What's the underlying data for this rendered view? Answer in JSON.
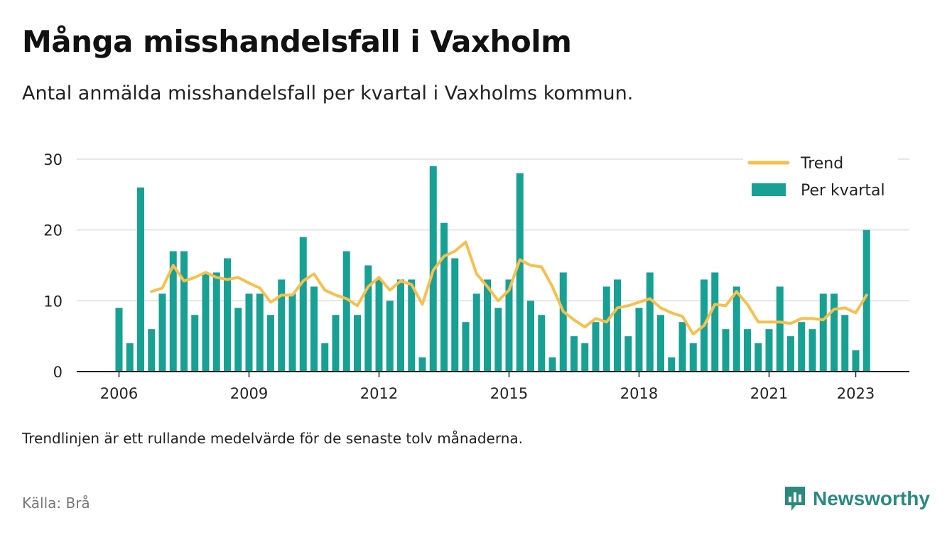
{
  "title": "Många misshandelsfall i Vaxholm",
  "subtitle": "Antal anmälda misshandelsfall per kvartal i Vaxholms kommun.",
  "note": "Trendlinjen är ett rullande medelvärde för de senaste tolv månaderna.",
  "source": "Källa: Brå",
  "brand": {
    "name": "Newsworthy",
    "icon": "newsworthy-logo-icon"
  },
  "colors": {
    "bar": "#17a195",
    "trend": "#f7c04c",
    "grid": "#dddddd",
    "axis": "#222222",
    "brand": "#2a8a80"
  },
  "chart_data": {
    "type": "bar",
    "x_start": 2006,
    "x_step": 0.25,
    "xticks": [
      "2006",
      "2009",
      "2012",
      "2015",
      "2018",
      "2021",
      "2023"
    ],
    "yticks": [
      "0",
      "10",
      "20",
      "30"
    ],
    "ylim": [
      0,
      30
    ],
    "grid": true,
    "legend_position": "top-right",
    "series": [
      {
        "name": "Per kvartal",
        "type": "bar",
        "values": [
          9,
          4,
          26,
          6,
          11,
          17,
          17,
          8,
          14,
          14,
          16,
          9,
          11,
          11,
          8,
          13,
          11,
          19,
          12,
          4,
          8,
          17,
          8,
          15,
          13,
          10,
          13,
          13,
          2,
          29,
          21,
          16,
          7,
          11,
          13,
          9,
          13,
          28,
          10,
          8,
          2,
          14,
          5,
          4,
          7,
          12,
          13,
          5,
          9,
          14,
          8,
          2,
          7,
          4,
          13,
          14,
          6,
          12,
          6,
          4,
          6,
          12,
          5,
          7,
          6,
          11,
          11,
          8,
          3,
          20
        ]
      },
      {
        "name": "Trend",
        "type": "line",
        "values": [
          null,
          null,
          null,
          11.3,
          11.8,
          15.0,
          12.8,
          13.3,
          14.0,
          13.3,
          13.0,
          13.3,
          12.5,
          11.8,
          9.8,
          10.8,
          10.8,
          12.8,
          13.8,
          11.5,
          10.8,
          10.3,
          9.3,
          12.0,
          13.3,
          11.5,
          12.8,
          12.3,
          9.5,
          14.3,
          16.3,
          17.0,
          18.3,
          13.8,
          12.0,
          10.0,
          11.5,
          15.8,
          15.0,
          14.8,
          12.0,
          8.5,
          7.3,
          6.3,
          7.5,
          7.0,
          9.0,
          9.3,
          9.8,
          10.3,
          9.0,
          8.3,
          7.8,
          5.3,
          6.5,
          9.5,
          9.3,
          11.3,
          9.5,
          7.0,
          7.0,
          7.0,
          6.8,
          7.5,
          7.5,
          7.3,
          8.8,
          9.0,
          8.3,
          10.8
        ]
      }
    ]
  }
}
